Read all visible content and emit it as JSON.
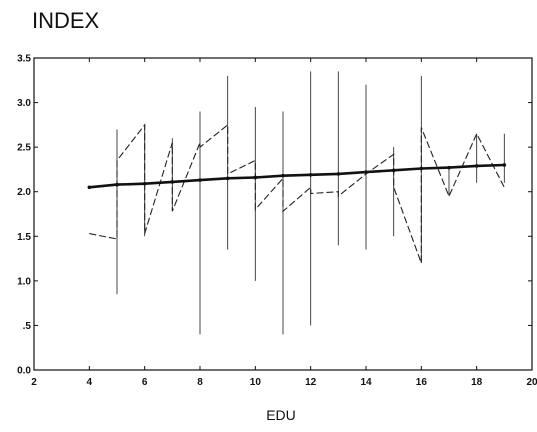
{
  "chart_data": {
    "type": "line",
    "title": "INDEX",
    "xlabel": "EDU",
    "ylabel": "",
    "xlim": [
      2,
      20
    ],
    "ylim": [
      0,
      3.5
    ],
    "xticks": [
      2,
      4,
      6,
      8,
      10,
      12,
      14,
      16,
      18,
      20
    ],
    "xtick_labels": [
      "2",
      "4",
      "6",
      "8",
      "10",
      "12",
      "14",
      "16",
      "18",
      "20"
    ],
    "yticks": [
      0,
      0.5,
      1,
      1.5,
      2,
      2.5,
      3,
      3.5
    ],
    "ytick_labels": [
      "0.0",
      ".5",
      "1.0",
      "1.5",
      "2.0",
      "2.5",
      "3.0",
      "3.5"
    ],
    "grid": false,
    "series": [
      {
        "style": "high-low range",
        "x": [
          4,
          5,
          6,
          7,
          8,
          9,
          10,
          11,
          12,
          13,
          14,
          15,
          16,
          17,
          18,
          19
        ],
        "low": [
          1.55,
          0.85,
          1.5,
          1.8,
          0.4,
          1.35,
          1.0,
          0.4,
          0.5,
          1.4,
          1.35,
          1.5,
          1.2,
          1.95,
          2.1,
          2.1
        ],
        "high": [
          1.55,
          2.7,
          2.75,
          2.6,
          2.9,
          3.3,
          2.95,
          2.9,
          3.35,
          3.35,
          3.2,
          2.5,
          3.3,
          2.25,
          2.65,
          2.65
        ]
      },
      {
        "style": "dashed connecting line",
        "x": [
          4,
          5,
          5,
          6,
          6,
          7,
          7,
          8,
          8,
          9,
          9,
          10,
          10,
          11,
          11,
          12,
          12,
          13,
          13,
          14,
          14,
          15,
          15,
          16,
          16,
          17,
          18,
          19
        ],
        "values": [
          1.53,
          1.47,
          2.35,
          2.75,
          1.53,
          2.55,
          1.78,
          2.55,
          2.5,
          2.75,
          2.2,
          2.35,
          1.8,
          2.15,
          1.78,
          2.05,
          1.98,
          2.0,
          1.95,
          2.2,
          2.2,
          2.42,
          2.05,
          1.2,
          2.72,
          1.95,
          2.65,
          2.05
        ]
      },
      {
        "style": "solid trend line",
        "x": [
          4,
          5,
          6,
          7,
          8,
          9,
          10,
          11,
          12,
          13,
          14,
          15,
          16,
          17,
          18,
          19
        ],
        "values": [
          2.05,
          2.08,
          2.09,
          2.11,
          2.13,
          2.15,
          2.16,
          2.18,
          2.19,
          2.2,
          2.22,
          2.24,
          2.26,
          2.27,
          2.29,
          2.3
        ]
      }
    ]
  }
}
